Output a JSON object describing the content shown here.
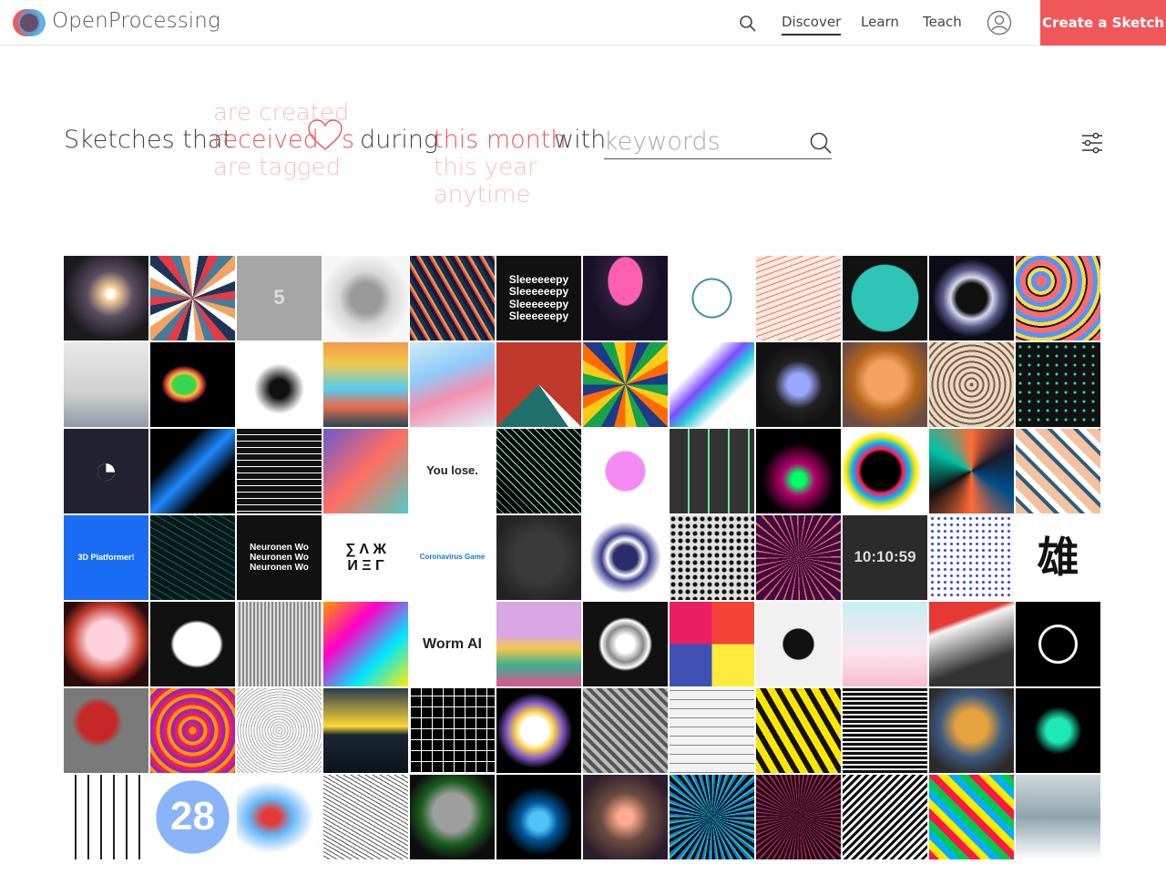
{
  "header": {
    "brand": "OpenProcessing",
    "nav": [
      {
        "label": "Discover",
        "active": true
      },
      {
        "label": "Learn",
        "active": false
      },
      {
        "label": "Teach",
        "active": false
      }
    ],
    "create_label": "Create a Sketch",
    "icons": [
      "search-icon",
      "user-avatar-icon",
      "logo-icon"
    ],
    "accent_color": "#f0575a"
  },
  "filter": {
    "prefix": "Sketches that",
    "action_options": [
      "are created",
      "received",
      "are tagged"
    ],
    "action_selected": "received",
    "heart_suffix": "s",
    "middle": "during",
    "period_options": [
      "this month",
      "this year",
      "anytime"
    ],
    "period_selected": "this month",
    "with": "with",
    "keywords_placeholder": "keywords"
  },
  "thumbnails": [
    {
      "bg": "radial-gradient(circle at 55% 45%, #ffffff 0 6%, #ffd7a0 10%, #5a4d60 35%, #1a1a1d 70%)"
    },
    {
      "bg": "repeating-conic-gradient(from 20deg, #e63946 0 12deg, #457b9d 12deg 24deg, #f4a261 24deg 36deg, #ffffff 36deg 48deg, #1d3557 48deg 60deg)"
    },
    {
      "bg": "#a6a6a6",
      "text": "5",
      "textColor": "#dddddd",
      "textSize": 22
    },
    {
      "bg": "radial-gradient(circle at 50% 50%, #9a9a9a 0 25%, #d9d9d9 45%, #f7f7f7 75%)"
    },
    {
      "bg": "repeating-linear-gradient(60deg, #1b1b2f 0 4px, #e94560 4px 6px, #f5a623 6px 8px, #0f3460 8px 12px)"
    },
    {
      "bg": "#111111",
      "text": "Sleeeeeepy\nSleeeeeepy\nSleeeeeepy\nSleeeeeepy",
      "textColor": "#ffffff",
      "textSize": 12
    },
    {
      "bg": "radial-gradient(ellipse at 50% 30%, #ff5fb0 0 28%, #2e1e3e 30%, #161126 60%)"
    },
    {
      "bg": "radial-gradient(circle at 50% 50%, #ffffff 0 30%, #3e8ea0 31% 33%, #ffffff 34%), repeating-conic-gradient(#e05a4a 0 3deg, #ffffff 3deg 12deg)"
    },
    {
      "bg": "repeating-linear-gradient(160deg, #fbe9e0 0 5px, #d97b66 5px 6px)"
    },
    {
      "bg": "radial-gradient(circle at 50% 50%, #2ec4b6 0 55%, #111111 57%)"
    },
    {
      "bg": "radial-gradient(circle at 50% 50%, #111 0 25%, #d8d8f0 35%, #5a5a8a 48%, #0c0c18 65%)"
    },
    {
      "bg": "repeating-radial-gradient(circle at 30% 30%, #ff6b6b 0 6px, #4d96ff 6px 11px, #ffd93d 11px 15px, #1a1a40 15px 17px)"
    },
    {
      "bg": "linear-gradient(180deg, #e9e9e9 0%, #cfcfcf 60%, #8f9aa8 100%)"
    },
    {
      "bg": "radial-gradient(ellipse at 40% 50%, #39d353 0 15%, #f3c623 20%, #e34a4a 25%, #000 32%)"
    },
    {
      "bg": "radial-gradient(circle at 50% 55%, #111 0 15%, #ffffff 40%)"
    },
    {
      "bg": "linear-gradient(180deg, #f2994a 0%, #f2c94c 25%, #56ccf2 55%, #e76f51 75%, #264653 100%)"
    },
    {
      "bg": "linear-gradient(160deg, #d0ecf7 0%, #90caf9 35%, #f48fb1 60%, #e1f5fe 100%)"
    },
    {
      "bg": "conic-gradient(from 45deg at 50% 50%, #c0392b 0 90deg, #ffffff 90deg 100deg, #1f6f6a 100deg 180deg, #c0392b 180deg)"
    },
    {
      "bg": "repeating-conic-gradient(from 0deg, #ff6b00 0 15deg, #1e3a8a 15deg 30deg, #16a34a 30deg 45deg, #facc15 45deg 60deg)"
    },
    {
      "bg": "linear-gradient(135deg, #ffffff 0 30%, #7c4dff 45%, #26c6da 55%, #ffffff 70%)"
    },
    {
      "bg": "radial-gradient(circle at 50% 50%, #9aa7ff 0 18%, #222 40%, #111 70%)"
    },
    {
      "bg": "radial-gradient(circle at 50% 45%, #f4a261 0 30%, #b5651d 50%, #6d4c41 80%)"
    },
    {
      "bg": "repeating-radial-gradient(circle at 50% 50%, #7b5a44 0 2px, #e8d8c4 2px 6px)"
    },
    {
      "bg": "radial-gradient(circle at 50% 50%, #20e3b2 0 1px, transparent 2px) 0 0/10px 10px, #111"
    },
    {
      "bg": "#222230",
      "text": "◔",
      "textColor": "#ffffff",
      "textSize": 44
    },
    {
      "bg": "linear-gradient(135deg, #000 0 30%, #1e88ff 50%, #000 70%)"
    },
    {
      "bg": "repeating-linear-gradient(180deg, #111 0 6px, #ffffff 6px 7px)"
    },
    {
      "bg": "linear-gradient(135deg, #6a5acd 0%, #ff6f61 50%, #4ecdc4 100%)"
    },
    {
      "bg": "#ffffff",
      "text": "You lose.",
      "textColor": "#222222",
      "textSize": 13
    },
    {
      "bg": "repeating-linear-gradient(45deg, #000 0 5px, #7fffd4 5px 6px)"
    },
    {
      "bg": "radial-gradient(circle at 50% 50%, #f48bf2 0 32%, #ffffff 35%)"
    },
    {
      "bg": "repeating-linear-gradient(90deg, #333 0 20px, #6be5a0 20px 22px), #333"
    },
    {
      "bg": "radial-gradient(circle at 50% 60%, #00ff66 0 10%, #b5006b 25%, #000 55%)"
    },
    {
      "bg": "radial-gradient(circle at 45% 50%, #000 0 30%, #ff1e56 35%, #00b4ff 45%, #ffe600 55%, #ffffff 65%)"
    },
    {
      "bg": "conic-gradient(from 0deg, #ff6b35, #1a1a2e, #004e89, #ff6b35, #111, #00c2a8, #ff6b35)"
    },
    {
      "bg": "repeating-linear-gradient(45deg, #f4c2a1 0 10px, #2f5d7c 10px 14px, #ffffff 14px 20px)"
    },
    {
      "bg": "#1a6cf5",
      "text": "3D Platformer!",
      "textColor": "#ffffff",
      "textSize": 9
    },
    {
      "bg": "repeating-linear-gradient(30deg, #061818 0 6px, #1f5f5f 6px 7px)"
    },
    {
      "bg": "#111111",
      "text": "Neuronen Wo\nNeuronen Wo\nNeuronen Wo",
      "textColor": "#ffffff",
      "textSize": 10
    },
    {
      "bg": "#ffffff",
      "text": "∑ Λ Ж\nИ Ξ Γ",
      "textColor": "#111111",
      "textSize": 16
    },
    {
      "bg": "#ffffff",
      "text": "Coronavirus Game",
      "textColor": "#1a73e8",
      "textSize": 8
    },
    {
      "bg": "radial-gradient(circle at 50% 50%, #3a3a3a 0 40%, #222 80%)"
    },
    {
      "bg": "radial-gradient(circle at 50% 50%, #2c2c6a 0 20%, #ffffff 30%, #3b3b8a 40%, #ffffff 60%)"
    },
    {
      "bg": "radial-gradient(circle at 50% 50%, #111 0 2px, transparent 3px) 0 0/8px 8px, #e0e0e0"
    },
    {
      "bg": "repeating-conic-gradient(from 0deg, #3a0a4a 0 8deg, #ff6b3d 8deg 10deg)"
    },
    {
      "bg": "#2b2b2b",
      "text": "10:10:59",
      "textColor": "#dddddd",
      "textSize": 17
    },
    {
      "bg": "radial-gradient(circle at 50% 50%, #2440c9 0 1px, transparent 2px) 0 0/7px 7px, #ffffff"
    },
    {
      "bg": "#ffffff",
      "text": "雄",
      "textColor": "#111111",
      "textSize": 46
    },
    {
      "bg": "radial-gradient(circle at 50% 45%, #ffd1dc 0 30%, #c0392b 55%, #2b0b0b 75%)"
    },
    {
      "bg": "radial-gradient(ellipse at 55% 50%, #ffffff 0 35%, #111 40%)"
    },
    {
      "bg": "repeating-linear-gradient(90deg, #ddd 0 2px, #888 2px 4px)"
    },
    {
      "bg": "linear-gradient(135deg, #ff9a00, #ff00c8, #00e5ff, #ffef00)"
    },
    {
      "bg": "#ffffff",
      "text": "Worm AI",
      "textColor": "#222222",
      "textSize": 16
    },
    {
      "bg": "linear-gradient(180deg, #d9a7e3 0 40%, #f6c84c 55%, #3bb08f 75%, #e94f8b 100%)"
    },
    {
      "bg": "radial-gradient(circle at 50% 50%, #ffffff 0 15%, #888 30%, #ffffff 40%, #111 45%)"
    },
    {
      "bg": "conic-gradient(#f44336 0 25%, #ffeb3b 25% 50%, #3f51b5 50% 75%, #e91e63 75%)"
    },
    {
      "bg": "radial-gradient(circle at 50% 50%, #111 0 25%, #f1f1f1 27%)"
    },
    {
      "bg": "linear-gradient(180deg, #c7f0f4 0%, #fce4ec 60%, #f8bbd0 100%)"
    },
    {
      "bg": "linear-gradient(160deg, #e53935 0 25%, #f5f5f5 30%, #333 70%)"
    },
    {
      "bg": "radial-gradient(circle at 50% 50%, #000 0 18px, #ffffff 19px 21px, #000 22px)"
    },
    {
      "bg": "radial-gradient(circle at 40% 40%, #c62828 0 25%, #7a7a7a 35%)"
    },
    {
      "bg": "repeating-radial-gradient(circle at 50% 50%, #ff9800 0 4px, #e91e63 4px 8px, #9c27b0 8px 12px)"
    },
    {
      "bg": "repeating-radial-gradient(circle at 50% 50%, #aaa 0 1px, #ffffff 1px 3px)"
    },
    {
      "bg": "linear-gradient(180deg, #2c3e50 0%, #fdd835 45%, #1a2634 55%, #0b141c 100%)"
    },
    {
      "bg": "repeating-linear-gradient(0deg, #ffffff 0 1px, transparent 1px 12px), repeating-linear-gradient(90deg, #ffffff 0 1px, #000 1px 12px)"
    },
    {
      "bg": "radial-gradient(circle at 45% 50%, #ffffff 0 22%, #ffd54f 30%, #7e57c2 45%, #000 60%)"
    },
    {
      "bg": "repeating-linear-gradient(45deg, #bbb 0 4px, #555 4px 8px)"
    },
    {
      "bg": "repeating-linear-gradient(0deg, #888 0 1px, #f2f2f2 1px 10px)"
    },
    {
      "bg": "repeating-linear-gradient(60deg, #ffe600 0 8px, #111 8px 14px)"
    },
    {
      "bg": "repeating-linear-gradient(0deg, #111 0 3px, #eeeeee 3px 5px)"
    },
    {
      "bg": "radial-gradient(circle at 50% 45%, #e6a23c 0 25%, #3d5a80 50%, #2b2b2b 80%)"
    },
    {
      "bg": "radial-gradient(circle at 50% 50%, #1de9b6 0 20%, #000 40%)"
    },
    {
      "bg": "repeating-linear-gradient(90deg, #ffffff 0 12px, #222 12px 14px)"
    },
    {
      "bg": "radial-gradient(circle at 50% 50%, #8ab4f8 0 60%, #ffffff 62%)",
      "text": "28",
      "textColor": "#ffffff",
      "textSize": 44
    },
    {
      "bg": "radial-gradient(ellipse at 40% 50%, #e53935 0 12%, #64b5f6 30%, #ffffff 60%)"
    },
    {
      "bg": "repeating-linear-gradient(30deg, #ffffff 0 3px, #555 3px 4px)"
    },
    {
      "bg": "radial-gradient(circle at 50% 45%, #9e9e9e 0 30%, #1b5e20 50%, #0d0d0d 75%)"
    },
    {
      "bg": "radial-gradient(circle at 50% 55%, #4fc3f7 0 15%, #01579b 30%, #000 55%)"
    },
    {
      "bg": "radial-gradient(circle at 50% 50%, #ffab91 0 12%, #6d4c41 40%, #2b1d2b 80%)"
    },
    {
      "bg": "repeating-conic-gradient(from 0deg, #00e676 0 2deg, #2962ff 2deg 5deg, #000 5deg 9deg)"
    },
    {
      "bg": "repeating-conic-gradient(from 0deg, #c2185b 0 2deg, #111 2deg 6deg)"
    },
    {
      "bg": "repeating-linear-gradient(135deg, #111 0 3px, #ffffff 3px 6px)"
    },
    {
      "bg": "repeating-linear-gradient(45deg, #ff1744 0 8px, #ffea00 8px 16px, #00b0ff 16px 24px, #00c853 24px 32px)"
    },
    {
      "bg": "linear-gradient(180deg, #cfd8dc 0%, #90a4ae 50%, #ffffff 100%)"
    }
  ]
}
